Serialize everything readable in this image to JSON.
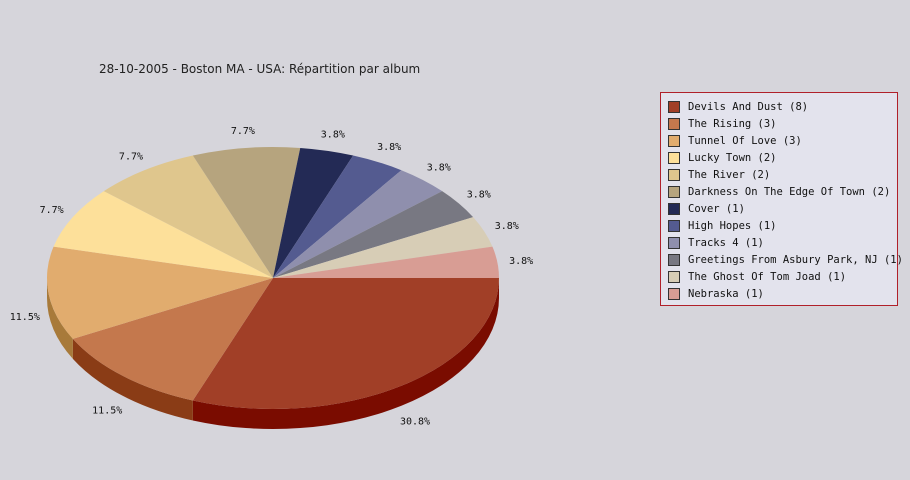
{
  "title": "28-10-2005 - Boston MA - USA:  Répartition par album",
  "chart_data": {
    "type": "pie",
    "title": "28-10-2005 - Boston MA - USA:  Répartition par album",
    "legend_position": "right",
    "three_d": true,
    "slices": [
      {
        "label": "Devils And Dust (8)",
        "value": 8,
        "percent_label": "30.8%",
        "color": "#a13f27",
        "side_color": "#7a0c00"
      },
      {
        "label": "The Rising (3)",
        "value": 3,
        "percent_label": "11.5%",
        "color": "#c4784d",
        "side_color": "#8a3c16"
      },
      {
        "label": "Tunnel Of Love (3)",
        "value": 3,
        "percent_label": "11.5%",
        "color": "#e1ac6e",
        "side_color": "#a87a3a"
      },
      {
        "label": "Lucky Town (2)",
        "value": 2,
        "percent_label": "7.7%",
        "color": "#fde09a",
        "side_color": "#c4a862"
      },
      {
        "label": "The River (2)",
        "value": 2,
        "percent_label": "7.7%",
        "color": "#dfc68d",
        "side_color": "#a8905a"
      },
      {
        "label": "Darkness On The Edge Of Town (2)",
        "value": 2,
        "percent_label": "7.7%",
        "color": "#b6a47e",
        "side_color": "#837350"
      },
      {
        "label": "Cover (1)",
        "value": 1,
        "percent_label": "3.8%",
        "color": "#232a55",
        "side_color": "#10142e"
      },
      {
        "label": "High Hopes (1)",
        "value": 1,
        "percent_label": "3.8%",
        "color": "#545b90",
        "side_color": "#323764"
      },
      {
        "label": "Tracks 4 (1)",
        "value": 1,
        "percent_label": "3.8%",
        "color": "#8f8fad",
        "side_color": "#5f5f7c"
      },
      {
        "label": "Greetings From Asbury Park, NJ (1)",
        "value": 1,
        "percent_label": "3.8%",
        "color": "#787882",
        "side_color": "#4c4c55"
      },
      {
        "label": "The Ghost Of Tom Joad (1)",
        "value": 1,
        "percent_label": "3.8%",
        "color": "#d7cdb6",
        "side_color": "#a39a84"
      },
      {
        "label": "Nebraska (1)",
        "value": 1,
        "percent_label": "3.8%",
        "color": "#d89d94",
        "side_color": "#a36b63"
      }
    ]
  }
}
